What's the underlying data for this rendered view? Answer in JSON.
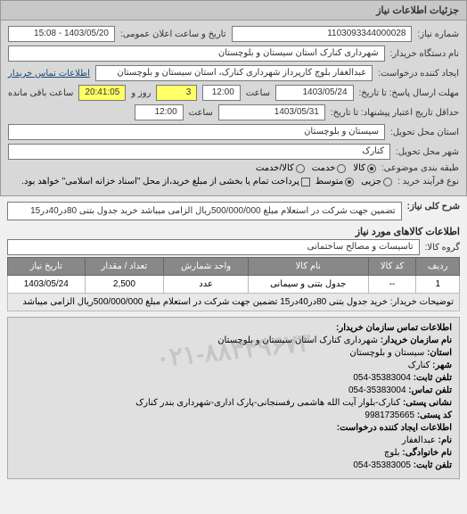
{
  "panel_title": "جزئیات اطلاعات نیاز",
  "form": {
    "req_number_label": "شماره نیاز:",
    "req_number": "1103093344000028",
    "public_date_label": "تاریخ و ساعت اعلان عمومی:",
    "public_date": "1403/05/20 - 15:08",
    "buyer_label": "نام دستگاه خریدار:",
    "buyer": "شهرداری کنارک استان سیستان و بلوچستان",
    "requester_label": "ایجاد کننده درخواست:",
    "requester": "عبدالغفار بلوچ کارپرداز شهرداری کنارک، استان سیستان و بلوچستان",
    "contact_link": "اطلاعات تماس خریدار",
    "deadline_label": "مهلت ارسال پاسخ: تا تاریخ:",
    "deadline_date": "1403/05/24",
    "deadline_time_label": "ساعت",
    "deadline_time": "12:00",
    "days_label": "روز و",
    "days": "3",
    "remain_label": "ساعت باقی مانده",
    "remain": "20:41:05",
    "valid_label": "حداقل تاریج اعتبار پیشنهاد: تا تاریخ:",
    "valid_date": "1403/05/31",
    "valid_time": "12:00",
    "province_label": "استان محل تحویل:",
    "province": "سیستان و بلوچستان",
    "city_label": "شهر محل تحویل:",
    "city": "کنارک",
    "type_group_label": "طبقه بندی موضوعی:",
    "type_opts": {
      "goods": "کالا",
      "service": "خدمت",
      "both": "کالا/خدمت"
    },
    "type_selected": "goods",
    "buy_type_label": "نوع فرآیند خرید :",
    "buy_opts": {
      "partial": "جزیی",
      "medium": "متوسط"
    },
    "buy_selected": "medium",
    "partial_pay_check": "پرداخت تمام یا بخشی از مبلغ خرید،از محل \"اسناد خزانه اسلامی\" خواهد بود."
  },
  "subject": {
    "label": "شرح کلی نیاز:",
    "text": "تضمین جهت شرکت در استعلام مبلغ 500/000/000ریال الزامی میباشد خرید جدول بتنی 80در40در15"
  },
  "goods_section": "اطلاعات کالاهای مورد نیاز",
  "group": {
    "label": "گروه کالا:",
    "value": "تاسیسات و مصالح ساختمانی"
  },
  "table": {
    "headers": {
      "row": "ردیف",
      "code": "کد کالا",
      "name": "نام کالا",
      "unit": "واحد شمارش",
      "qty": "تعداد / مقدار",
      "date": "تاریخ نیاز"
    },
    "rows": [
      {
        "row": "1",
        "code": "--",
        "name": "جدول بتنی و سیمانی",
        "unit": "عدد",
        "qty": "2,500",
        "date": "1403/05/24"
      }
    ],
    "desc_label": "توضیحات خریدار:",
    "desc_text": "خرید جدول بتنی 80در40در15 تضمین جهت شرکت در استعلام مبلغ 500/000/000ریال الزامی میباشد"
  },
  "contact": {
    "header": "اطلاعات تماس سازمان خریدار:",
    "org_label": "نام سازمان خریدار:",
    "org": "شهرداری کنارک استان سیستان و بلوچستان",
    "province_label": "استان:",
    "province": "سیستان و بلوچستان",
    "city_label": "شهر:",
    "city": "کنارک",
    "phone_label": "تلفن ثابت:",
    "phone": "35383004-054",
    "fax_label": "تلفن تماس:",
    "fax": "35383004-054",
    "addr_label": "نشانی پستی:",
    "addr": "کنارک-بلوار آیت الله هاشمی رفسنجانی-پارک اداری-شهرداری بندر کنارک",
    "postcode_label": "کد پستی:",
    "postcode": "9981735665",
    "req_header": "اطلاعات ایجاد کننده درخواست:",
    "name_label": "نام:",
    "name": "عبدالغفار",
    "family_label": "نام خانوادگی:",
    "family": "بلوچ",
    "req_phone_label": "تلفن ثابت:",
    "req_phone": "35383005-054",
    "watermark": "۰۲۱-۸۸۳۴۹۶۷۳"
  },
  "colors": {
    "header_bg": "#c8c8c8",
    "form_bg": "#d8d8d8",
    "table_head": "#888888",
    "highlight": "#ffff66"
  }
}
